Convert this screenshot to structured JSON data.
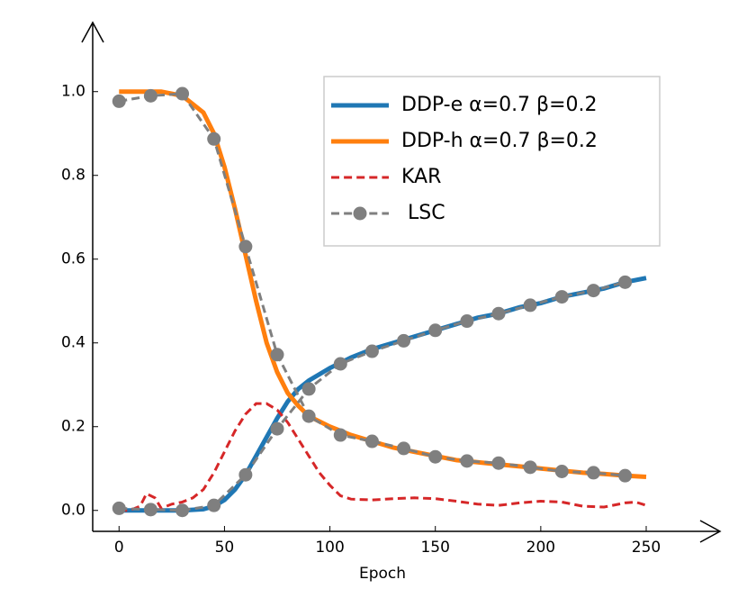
{
  "chart_data": {
    "type": "line",
    "xlabel": "Epoch",
    "xlim": [
      -12.5,
      285
    ],
    "ylim": [
      -0.05,
      1.165
    ],
    "xticks": [
      0,
      50,
      100,
      150,
      200,
      250
    ],
    "yticks": [
      {
        "value": 0,
        "label": "0.0"
      },
      {
        "value": 0.2,
        "label": "0.2"
      },
      {
        "value": 0.4,
        "label": "0.4"
      },
      {
        "value": 0.6,
        "label": "0.6"
      },
      {
        "value": 0.8,
        "label": "0.8"
      },
      {
        "value": 1,
        "label": "1.0"
      }
    ],
    "legend": "upper right",
    "series": [
      {
        "name": "DDP-e α=0.7 β=0.2",
        "color": "#1f77b4",
        "width": 5,
        "style": "solid",
        "x": [
          0,
          10,
          20,
          30,
          40,
          45,
          50,
          55,
          60,
          65,
          70,
          75,
          80,
          85,
          90,
          100,
          110,
          120,
          130,
          140,
          150,
          160,
          170,
          180,
          190,
          200,
          210,
          220,
          230,
          240,
          250
        ],
        "values": [
          0,
          0,
          0,
          0,
          0.003,
          0.01,
          0.025,
          0.05,
          0.085,
          0.13,
          0.175,
          0.22,
          0.26,
          0.29,
          0.31,
          0.34,
          0.365,
          0.385,
          0.4,
          0.415,
          0.43,
          0.445,
          0.46,
          0.47,
          0.485,
          0.495,
          0.51,
          0.52,
          0.53,
          0.545,
          0.555
        ]
      },
      {
        "name": "DDP-h α=0.7 β=0.2",
        "color": "#ff7f0e",
        "width": 5,
        "style": "solid",
        "x": [
          0,
          10,
          20,
          30,
          40,
          45,
          50,
          55,
          60,
          65,
          70,
          75,
          80,
          85,
          90,
          100,
          110,
          120,
          130,
          140,
          150,
          160,
          170,
          180,
          190,
          200,
          210,
          220,
          230,
          240,
          250
        ],
        "values": [
          1,
          1,
          1,
          0.99,
          0.95,
          0.9,
          0.82,
          0.72,
          0.61,
          0.5,
          0.4,
          0.33,
          0.28,
          0.25,
          0.225,
          0.2,
          0.18,
          0.165,
          0.15,
          0.14,
          0.13,
          0.12,
          0.115,
          0.11,
          0.105,
          0.1,
          0.095,
          0.09,
          0.087,
          0.083,
          0.08
        ]
      },
      {
        "name": "KAR",
        "color": "#d62728",
        "width": 3,
        "style": "dashed",
        "x": [
          0,
          5,
          10,
          13,
          17,
          20,
          25,
          30,
          35,
          40,
          45,
          50,
          55,
          60,
          65,
          70,
          75,
          80,
          85,
          90,
          95,
          100,
          105,
          110,
          120,
          130,
          140,
          150,
          160,
          170,
          180,
          190,
          200,
          210,
          220,
          230,
          240,
          245,
          250
        ],
        "values": [
          0,
          0,
          0.01,
          0.04,
          0.03,
          0.005,
          0.015,
          0.02,
          0.03,
          0.05,
          0.09,
          0.14,
          0.19,
          0.23,
          0.255,
          0.255,
          0.24,
          0.21,
          0.17,
          0.13,
          0.09,
          0.06,
          0.035,
          0.027,
          0.025,
          0.028,
          0.03,
          0.028,
          0.022,
          0.015,
          0.012,
          0.018,
          0.022,
          0.02,
          0.01,
          0.008,
          0.018,
          0.02,
          0.012
        ]
      },
      {
        "name": " LSC",
        "color": "#7f7f7f",
        "width": 3,
        "style": "dashed",
        "marker": "o",
        "x": [
          0,
          15,
          30,
          45,
          60,
          75,
          90,
          105,
          120,
          135,
          150,
          165,
          180,
          195,
          210,
          225,
          240
        ],
        "values": [
          0.977,
          0.99,
          0.995,
          0.887,
          0.63,
          0.372,
          0.225,
          0.18,
          0.165,
          0.148,
          0.128,
          0.118,
          0.113,
          0.103,
          0.093,
          0.09,
          0.083
        ]
      },
      {
        "color": "#7f7f7f",
        "width": 3,
        "style": "dashed",
        "marker": "o",
        "x": [
          0,
          15,
          30,
          45,
          60,
          75,
          90,
          105,
          120,
          135,
          150,
          165,
          180,
          195,
          210,
          225,
          240
        ],
        "values": [
          0.005,
          0.002,
          0,
          0.012,
          0.085,
          0.195,
          0.29,
          0.35,
          0.38,
          0.405,
          0.43,
          0.452,
          0.47,
          0.49,
          0.51,
          0.525,
          0.545
        ]
      }
    ]
  }
}
